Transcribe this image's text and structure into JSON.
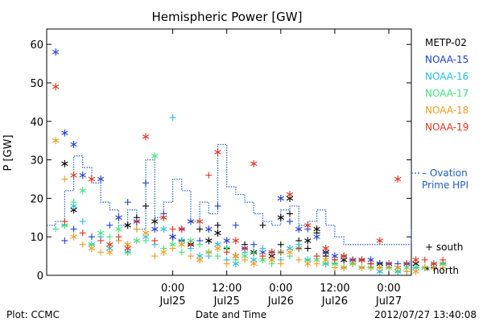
{
  "chart_data": {
    "type": "scatter",
    "title": "Hemispheric Power [GW]",
    "ylabel": "P [GW]",
    "xlabel": "Date and Time",
    "ylim": [
      0,
      64
    ],
    "y_ticks": [
      0,
      10,
      20,
      30,
      40,
      50,
      60
    ],
    "x_range_hours": [
      -14,
      26.5
    ],
    "x_ticks": [
      {
        "hour": 0,
        "time": "0:00",
        "day": "Jul25"
      },
      {
        "hour": 6,
        "time": "12:00",
        "day": "Jul25"
      },
      {
        "hour": 12,
        "time": "0:00",
        "day": "Jul26"
      },
      {
        "hour": 18,
        "time": "12:00",
        "day": "Jul26"
      },
      {
        "hour": 24,
        "time": "0:00",
        "day": "Jul27"
      },
      {
        "hour": 30,
        "time": "12:00",
        "day": "Jul27"
      }
    ],
    "grid": false,
    "legend_position": "right",
    "series": [
      {
        "name": "METP-02",
        "color": "#000000",
        "south": [
          [
            -4,
            15
          ],
          [
            -3,
            18
          ],
          [
            1,
            9
          ],
          [
            3,
            12
          ],
          [
            5,
            13
          ],
          [
            6,
            7
          ],
          [
            8,
            8
          ],
          [
            9,
            6
          ],
          [
            10,
            13
          ],
          [
            12,
            8
          ],
          [
            13,
            16
          ],
          [
            14,
            9
          ],
          [
            15,
            7
          ],
          [
            16,
            11
          ],
          [
            17,
            5
          ],
          [
            18,
            4
          ],
          [
            20,
            4
          ],
          [
            22,
            3
          ],
          [
            24,
            3
          ],
          [
            26,
            3
          ],
          [
            27,
            2
          ],
          [
            29,
            3
          ]
        ],
        "north": [
          [
            -12,
            29
          ],
          [
            -11,
            17
          ],
          [
            -5,
            13
          ],
          [
            -2,
            14
          ],
          [
            0,
            10
          ],
          [
            2,
            8
          ],
          [
            4,
            9
          ],
          [
            5,
            11
          ],
          [
            7,
            5
          ],
          [
            9,
            6
          ],
          [
            11,
            5
          ],
          [
            12,
            15
          ],
          [
            13,
            20
          ],
          [
            15,
            9
          ],
          [
            16,
            12
          ],
          [
            17,
            6
          ],
          [
            19,
            4
          ],
          [
            21,
            4
          ],
          [
            23,
            3
          ],
          [
            25,
            2
          ],
          [
            27,
            3
          ],
          [
            30,
            3
          ]
        ]
      },
      {
        "name": "NOAA-15",
        "color": "#1f3ccf",
        "south": [
          [
            -12,
            9
          ],
          [
            -11,
            12
          ],
          [
            -9,
            10
          ],
          [
            -7,
            13
          ],
          [
            -5,
            19
          ],
          [
            -3,
            24
          ],
          [
            -1,
            16
          ],
          [
            1,
            12
          ],
          [
            3,
            9
          ],
          [
            5,
            18
          ],
          [
            7,
            13
          ],
          [
            9,
            8
          ],
          [
            11,
            6
          ],
          [
            13,
            14
          ],
          [
            15,
            12
          ],
          [
            17,
            6
          ],
          [
            19,
            5
          ],
          [
            21,
            4
          ],
          [
            23,
            3
          ],
          [
            25,
            3
          ],
          [
            27,
            2
          ],
          [
            29,
            2
          ]
        ],
        "north": [
          [
            -13,
            58
          ],
          [
            -12,
            37
          ],
          [
            -11,
            34
          ],
          [
            -10,
            26
          ],
          [
            -8,
            25
          ],
          [
            -6,
            15
          ],
          [
            -4,
            14
          ],
          [
            -2,
            12
          ],
          [
            0,
            10
          ],
          [
            2,
            14
          ],
          [
            4,
            12
          ],
          [
            6,
            9
          ],
          [
            8,
            7
          ],
          [
            10,
            6
          ],
          [
            12,
            20
          ],
          [
            14,
            12
          ],
          [
            16,
            10
          ],
          [
            18,
            5
          ],
          [
            20,
            4
          ],
          [
            22,
            4
          ],
          [
            24,
            3
          ],
          [
            26,
            3
          ]
        ]
      },
      {
        "name": "NOAA-16",
        "color": "#22bcd9",
        "south": [
          [
            -12,
            13
          ],
          [
            -10,
            14
          ],
          [
            -8,
            10
          ],
          [
            -6,
            9
          ],
          [
            -4,
            12
          ],
          [
            -2,
            8
          ],
          [
            0,
            41
          ],
          [
            2,
            7
          ],
          [
            4,
            5
          ],
          [
            6,
            4
          ],
          [
            8,
            6
          ],
          [
            10,
            7
          ],
          [
            12,
            4
          ],
          [
            14,
            8
          ],
          [
            16,
            5
          ],
          [
            18,
            3
          ],
          [
            20,
            3
          ],
          [
            22,
            2
          ],
          [
            24,
            2
          ],
          [
            26,
            1
          ],
          [
            28,
            2
          ],
          [
            30,
            3
          ]
        ],
        "north": [
          [
            -11,
            18
          ],
          [
            -9,
            8
          ],
          [
            -7,
            7
          ],
          [
            -5,
            6
          ],
          [
            -3,
            10
          ],
          [
            -1,
            12
          ],
          [
            1,
            9
          ],
          [
            3,
            5
          ],
          [
            5,
            8
          ],
          [
            7,
            3
          ],
          [
            9,
            4
          ],
          [
            11,
            6
          ],
          [
            13,
            7
          ],
          [
            15,
            4
          ],
          [
            17,
            3
          ],
          [
            19,
            2
          ],
          [
            21,
            2
          ],
          [
            23,
            1
          ],
          [
            25,
            1
          ],
          [
            27,
            2
          ],
          [
            29,
            2
          ]
        ]
      },
      {
        "name": "NOAA-17",
        "color": "#3ee27a",
        "south": [
          [
            -13,
            12
          ],
          [
            -11,
            19
          ],
          [
            -9,
            8
          ],
          [
            -7,
            10
          ],
          [
            -5,
            6
          ],
          [
            -3,
            9
          ],
          [
            -1,
            7
          ],
          [
            1,
            6
          ],
          [
            3,
            8
          ],
          [
            5,
            5
          ],
          [
            7,
            4
          ],
          [
            9,
            6
          ],
          [
            11,
            3
          ],
          [
            13,
            5
          ],
          [
            15,
            4
          ],
          [
            17,
            3
          ],
          [
            19,
            2
          ],
          [
            21,
            2
          ],
          [
            23,
            2
          ],
          [
            25,
            1
          ],
          [
            27,
            2
          ],
          [
            29,
            3
          ]
        ],
        "north": [
          [
            -12,
            13
          ],
          [
            -10,
            22
          ],
          [
            -8,
            11
          ],
          [
            -6,
            12
          ],
          [
            -4,
            9
          ],
          [
            -2,
            31
          ],
          [
            0,
            8
          ],
          [
            2,
            9
          ],
          [
            4,
            6
          ],
          [
            6,
            7
          ],
          [
            8,
            5
          ],
          [
            10,
            4
          ],
          [
            12,
            6
          ],
          [
            14,
            7
          ],
          [
            16,
            4
          ],
          [
            18,
            3
          ],
          [
            20,
            3
          ],
          [
            22,
            2
          ],
          [
            24,
            2
          ],
          [
            26,
            2
          ],
          [
            28,
            2
          ],
          [
            30,
            3
          ]
        ]
      },
      {
        "name": "NOAA-18",
        "color": "#f29a1e",
        "south": [
          [
            -12,
            25
          ],
          [
            -10,
            8
          ],
          [
            -8,
            6
          ],
          [
            -6,
            9
          ],
          [
            -4,
            12
          ],
          [
            -2,
            5
          ],
          [
            0,
            7
          ],
          [
            2,
            5
          ],
          [
            4,
            6
          ],
          [
            6,
            3
          ],
          [
            8,
            4
          ],
          [
            10,
            5
          ],
          [
            12,
            3
          ],
          [
            14,
            4
          ],
          [
            16,
            3
          ],
          [
            18,
            2
          ],
          [
            20,
            3
          ],
          [
            22,
            2
          ],
          [
            24,
            2
          ],
          [
            26,
            1
          ],
          [
            28,
            2
          ],
          [
            30,
            2
          ]
        ],
        "north": [
          [
            -13,
            35
          ],
          [
            -11,
            10
          ],
          [
            -9,
            7
          ],
          [
            -7,
            6
          ],
          [
            -5,
            8
          ],
          [
            -3,
            11
          ],
          [
            -1,
            6
          ],
          [
            1,
            8
          ],
          [
            3,
            4
          ],
          [
            5,
            7
          ],
          [
            7,
            5
          ],
          [
            9,
            3
          ],
          [
            11,
            4
          ],
          [
            13,
            6
          ],
          [
            15,
            3
          ],
          [
            17,
            4
          ],
          [
            19,
            2
          ],
          [
            21,
            2
          ],
          [
            23,
            2
          ],
          [
            25,
            2
          ],
          [
            27,
            1
          ],
          [
            29,
            2
          ]
        ]
      },
      {
        "name": "NOAA-19",
        "color": "#e0341c",
        "south": [
          [
            -12,
            14
          ],
          [
            -10,
            11
          ],
          [
            -8,
            9
          ],
          [
            -6,
            10
          ],
          [
            -4,
            14
          ],
          [
            -2,
            9
          ],
          [
            0,
            12
          ],
          [
            2,
            8
          ],
          [
            4,
            26
          ],
          [
            6,
            6
          ],
          [
            8,
            7
          ],
          [
            10,
            5
          ],
          [
            12,
            6
          ],
          [
            14,
            7
          ],
          [
            16,
            5
          ],
          [
            18,
            4
          ],
          [
            20,
            4
          ],
          [
            22,
            3
          ],
          [
            24,
            3
          ],
          [
            26,
            3
          ],
          [
            28,
            4
          ],
          [
            30,
            4
          ]
        ],
        "north": [
          [
            -13,
            49
          ],
          [
            -11,
            26
          ],
          [
            -9,
            25
          ],
          [
            -7,
            8
          ],
          [
            -5,
            7
          ],
          [
            -3,
            36
          ],
          [
            -1,
            15
          ],
          [
            1,
            12
          ],
          [
            3,
            14
          ],
          [
            5,
            32
          ],
          [
            7,
            9
          ],
          [
            9,
            29
          ],
          [
            11,
            6
          ],
          [
            13,
            21
          ],
          [
            15,
            13
          ],
          [
            17,
            7
          ],
          [
            19,
            5
          ],
          [
            21,
            4
          ],
          [
            23,
            9
          ],
          [
            25,
            25
          ],
          [
            27,
            4
          ],
          [
            29,
            3
          ]
        ]
      }
    ],
    "ovation": {
      "name": "Ovation Prime HPI",
      "legend_lines": [
        "– Ovation",
        "Prime HPI"
      ],
      "color": "#1f5fbf",
      "points": [
        [
          -14,
          13
        ],
        [
          -13,
          14
        ],
        [
          -12,
          22
        ],
        [
          -11,
          31
        ],
        [
          -10,
          28
        ],
        [
          -9,
          24
        ],
        [
          -8,
          19
        ],
        [
          -7,
          17
        ],
        [
          -6,
          13
        ],
        [
          -5,
          17
        ],
        [
          -4,
          12
        ],
        [
          -3,
          30
        ],
        [
          -2,
          15
        ],
        [
          -1,
          19
        ],
        [
          0,
          25
        ],
        [
          1,
          22
        ],
        [
          2,
          14
        ],
        [
          3,
          19
        ],
        [
          4,
          16
        ],
        [
          5,
          34
        ],
        [
          6,
          23
        ],
        [
          7,
          21
        ],
        [
          8,
          19
        ],
        [
          9,
          16
        ],
        [
          10,
          14
        ],
        [
          11,
          13
        ],
        [
          12,
          17
        ],
        [
          13,
          18
        ],
        [
          14,
          13
        ],
        [
          15,
          14
        ],
        [
          16,
          17
        ],
        [
          17,
          13
        ],
        [
          18,
          10
        ],
        [
          19,
          8
        ],
        [
          20,
          8
        ],
        [
          21,
          8
        ],
        [
          22,
          8
        ],
        [
          23,
          8
        ],
        [
          24,
          8
        ],
        [
          25,
          8
        ],
        [
          26,
          8
        ],
        [
          27,
          8
        ],
        [
          28,
          10
        ],
        [
          29,
          11
        ],
        [
          30,
          12
        ]
      ]
    },
    "marker_key": [
      {
        "symbol": "+",
        "label": "south"
      },
      {
        "symbol": "*",
        "label": "north"
      }
    ]
  },
  "footer": {
    "left": "Plot: CCMC",
    "center": "Date and Time",
    "right": "2012/07/27 13:40:08"
  }
}
